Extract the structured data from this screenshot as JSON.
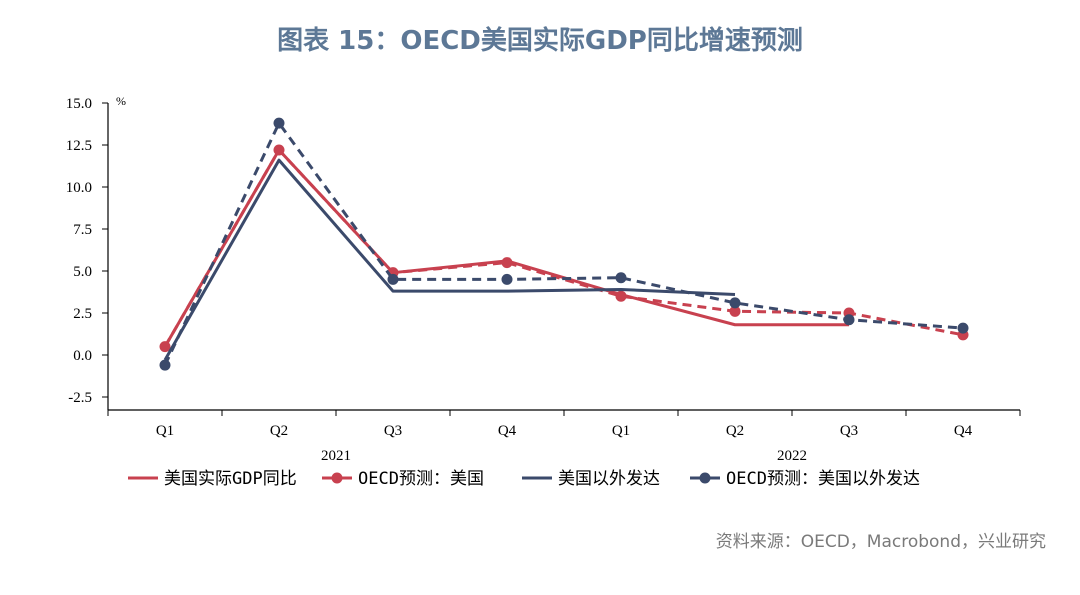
{
  "title": "图表 15：OECD美国实际GDP同比增速预测",
  "source": "资料来源：OECD，Macrobond，兴业研究",
  "colors": {
    "red": "#c8414f",
    "navy": "#3b4a6b",
    "axis": "#000000",
    "title": "#5d7896"
  },
  "chart_data": {
    "type": "line",
    "title": "图表 15：OECD美国实际GDP同比增速预测",
    "ylabel": "%",
    "ylim": [
      -2.5,
      15.0
    ],
    "yticks": [
      "15.0",
      "12.5",
      "10.0",
      "7.5",
      "5.0",
      "2.5",
      "0.0",
      "-2.5"
    ],
    "yticks_values": [
      15.0,
      12.5,
      10.0,
      7.5,
      5.0,
      2.5,
      0.0,
      -2.5
    ],
    "categories": [
      "Q1",
      "Q2",
      "Q3",
      "Q4",
      "Q1",
      "Q2",
      "Q3",
      "Q4"
    ],
    "year_labels": [
      {
        "label": "2021",
        "center": 1.5
      },
      {
        "label": "2022",
        "center": 5.5
      }
    ],
    "series": [
      {
        "name": "美国实际GDP同比",
        "style": "solid",
        "marker": false,
        "color": "#c8414f",
        "values": [
          0.5,
          12.2,
          4.9,
          5.6,
          3.6,
          1.8,
          1.8,
          null
        ]
      },
      {
        "name": "OECD预测：美国",
        "style": "dashed",
        "marker": true,
        "color": "#c8414f",
        "values": [
          0.5,
          12.2,
          4.9,
          5.5,
          3.5,
          2.6,
          2.5,
          1.2
        ]
      },
      {
        "name": "美国以外发达",
        "style": "solid",
        "marker": false,
        "color": "#3b4a6b",
        "values": [
          -0.3,
          11.6,
          3.8,
          3.8,
          3.9,
          3.6,
          null,
          null
        ]
      },
      {
        "name": "OECD预测：美国以外发达",
        "style": "dashed",
        "marker": true,
        "color": "#3b4a6b",
        "values": [
          -0.6,
          13.8,
          4.5,
          4.5,
          4.6,
          3.1,
          2.1,
          1.6
        ]
      }
    ],
    "legend": [
      "美国实际GDP同比",
      "OECD预测：美国",
      "美国以外发达",
      "OECD预测：美国以外发达"
    ],
    "legend_position": "bottom",
    "grid": false
  }
}
